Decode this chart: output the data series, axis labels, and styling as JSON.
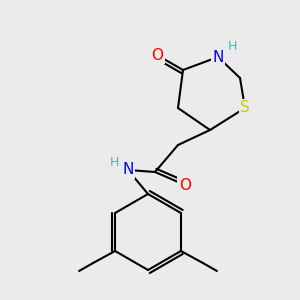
{
  "bg_color": "#ebebeb",
  "bond_color": "#000000",
  "bond_lw": 1.5,
  "atom_colors": {
    "O": "#ff0000",
    "N": "#0000ff",
    "S": "#cccc00",
    "H_ring": "#4ab5b5",
    "H_amide": "#4ab5b5",
    "C": "#000000"
  },
  "font_size_atom": 11,
  "font_size_H": 9
}
